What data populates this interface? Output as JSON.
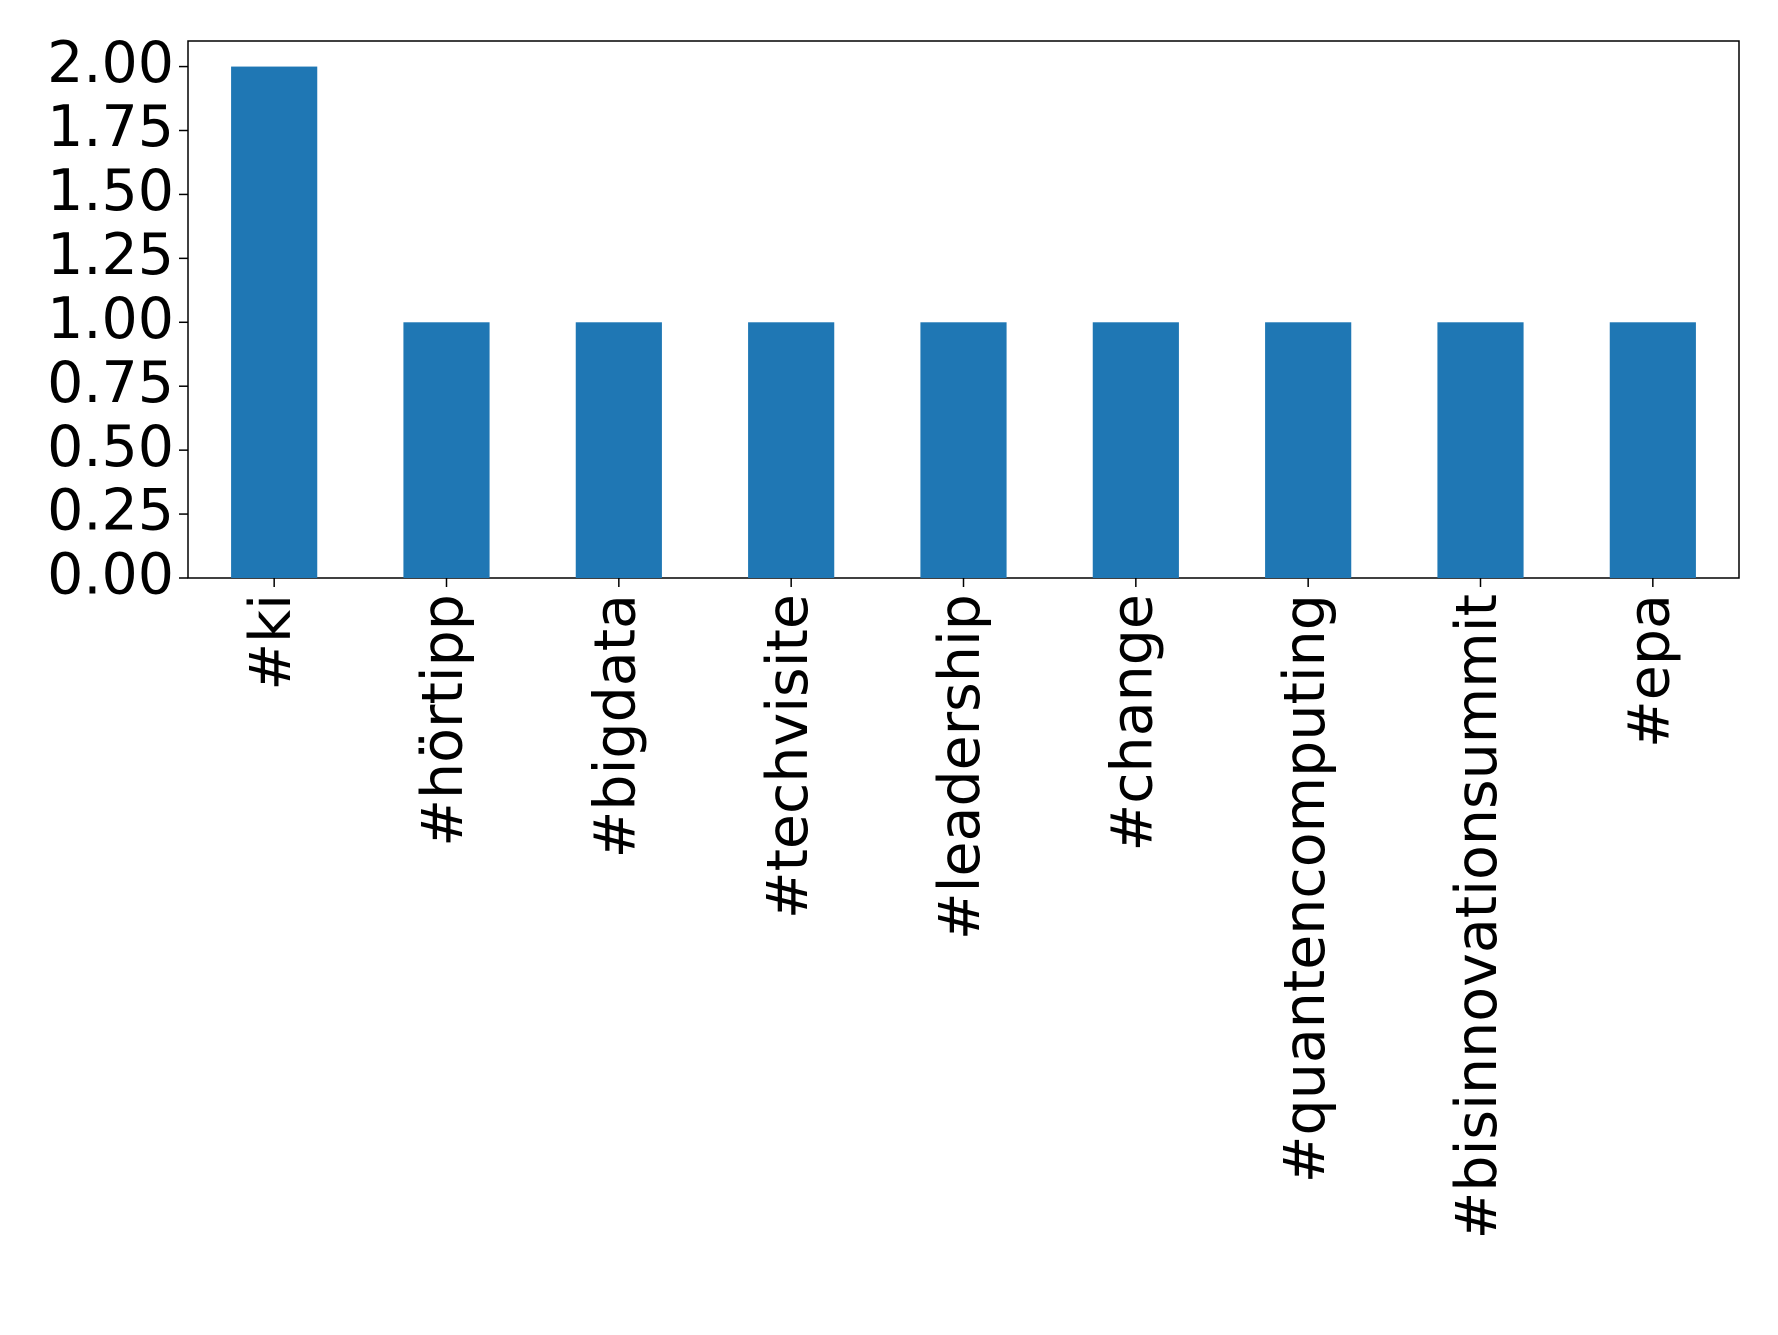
{
  "chart_data": {
    "type": "bar",
    "categories": [
      "#ki",
      "#hörtipp",
      "#bigdata",
      "#techvisite",
      "#leadership",
      "#change",
      "#quantencomputing",
      "#bisinnovationsummit",
      "#epa"
    ],
    "values": [
      2,
      1,
      1,
      1,
      1,
      1,
      1,
      1,
      1
    ],
    "color": "#1f77b4",
    "ylim": [
      0,
      2.1
    ],
    "yticks": [
      {
        "value": 0,
        "label": "0.00"
      },
      {
        "value": 0.25,
        "label": "0.25"
      },
      {
        "value": 0.5,
        "label": "0.50"
      },
      {
        "value": 0.75,
        "label": "0.75"
      },
      {
        "value": 1,
        "label": "1.00"
      },
      {
        "value": 1.25,
        "label": "1.25"
      },
      {
        "value": 1.5,
        "label": "1.50"
      },
      {
        "value": 1.75,
        "label": "1.75"
      },
      {
        "value": 2,
        "label": "2.00"
      }
    ],
    "grid": false
  }
}
